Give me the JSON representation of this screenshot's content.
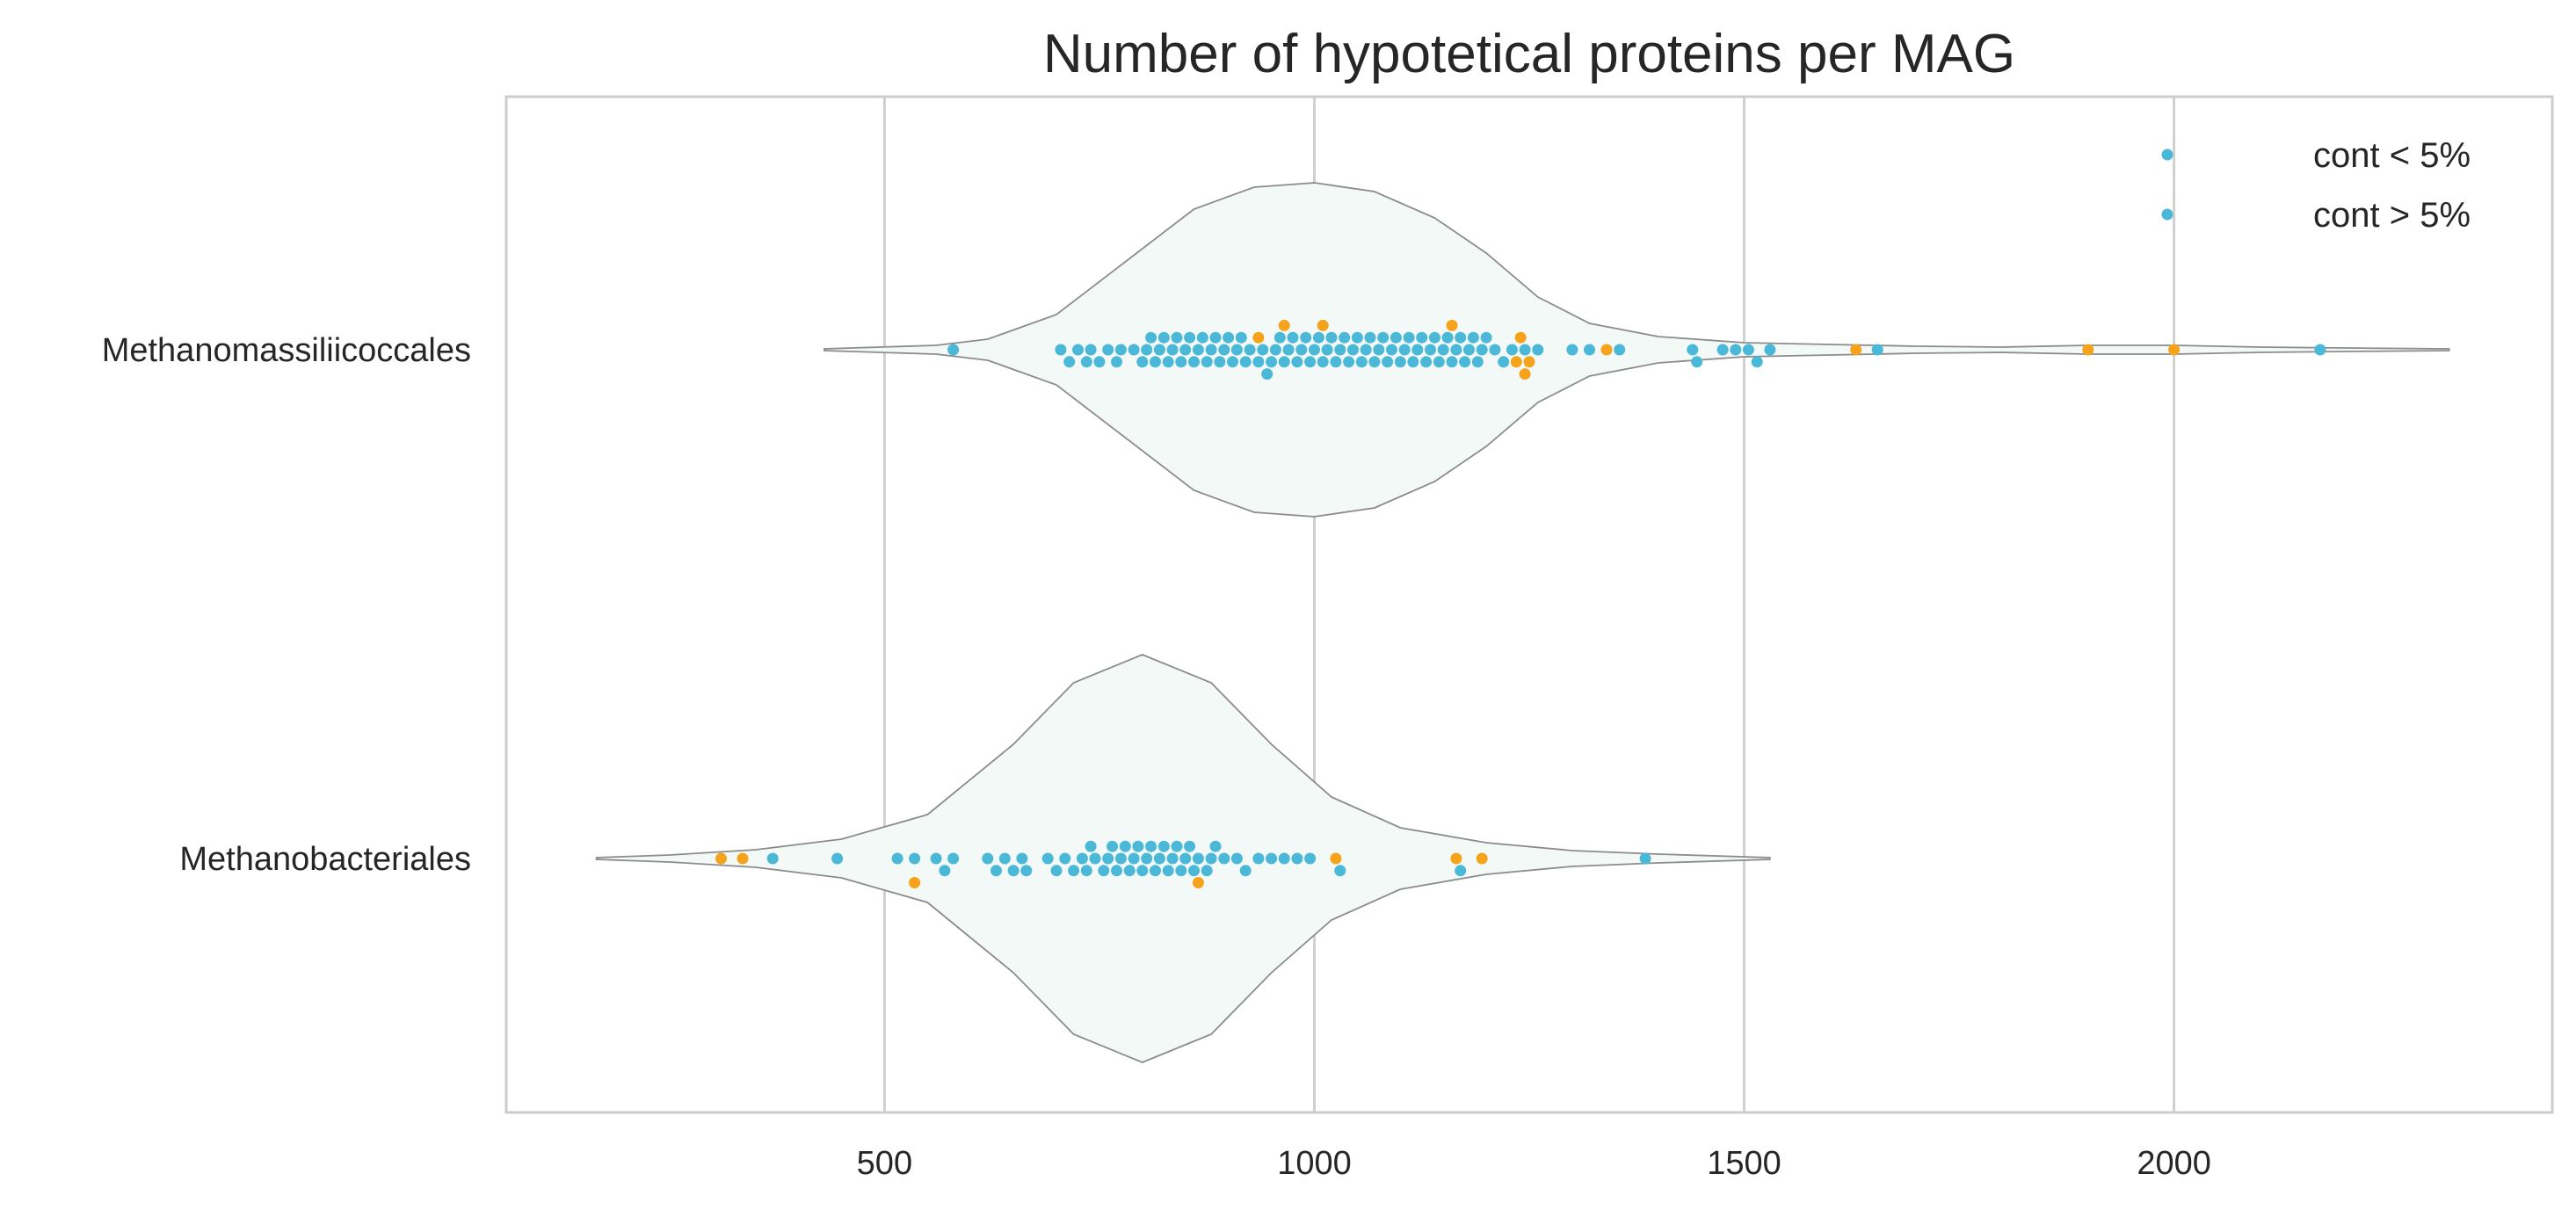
{
  "chart_data": {
    "type": "swarm-violin",
    "title": "Number of hypotetical proteins per MAG",
    "xlabel": "",
    "ylabel": "",
    "xlim": [
      60,
      2440
    ],
    "x_ticks": [
      500,
      1000,
      1500,
      2000
    ],
    "categories": [
      "Methanomassiliicoccales",
      "Methanobacteriales"
    ],
    "grid": "vertical",
    "legend_position": "top-right",
    "legend": [
      {
        "label": "cont < 5%",
        "color": "#4bb8d8"
      },
      {
        "label": "cont > 5%",
        "color": "#4bb8d8"
      }
    ],
    "colors": {
      "low_contamination": "#4bb8d8",
      "high_contamination": "#f5a31a",
      "violin_fill": "#f3f9f7",
      "violin_edge": "#8c8c8c",
      "grid": "#d0d0d0"
    },
    "violins": [
      {
        "category": "Methanomassiliicoccales",
        "min": 430,
        "max": 2320,
        "mode": 1000
      },
      {
        "category": "Methanobacteriales",
        "min": 165,
        "max": 1530,
        "mode": 800
      }
    ],
    "series": [
      {
        "category": "Methanomassiliicoccales",
        "low_contamination": [
          580,
          705,
          715,
          725,
          735,
          740,
          750,
          760,
          770,
          775,
          790,
          800,
          805,
          810,
          815,
          820,
          825,
          830,
          835,
          840,
          845,
          850,
          855,
          860,
          865,
          870,
          875,
          880,
          885,
          890,
          895,
          900,
          905,
          910,
          915,
          920,
          925,
          935,
          940,
          945,
          950,
          955,
          960,
          965,
          970,
          975,
          980,
          985,
          990,
          995,
          1000,
          1005,
          1010,
          1015,
          1020,
          1025,
          1030,
          1035,
          1040,
          1045,
          1050,
          1055,
          1060,
          1065,
          1070,
          1075,
          1080,
          1085,
          1090,
          1095,
          1100,
          1105,
          1110,
          1115,
          1120,
          1125,
          1130,
          1135,
          1140,
          1145,
          1150,
          1155,
          1160,
          1165,
          1170,
          1175,
          1180,
          1185,
          1190,
          1195,
          1200,
          1210,
          1220,
          1230,
          1245,
          1260,
          1300,
          1320,
          1355,
          1440,
          1445,
          1475,
          1490,
          1505,
          1515,
          1530,
          1655,
          2170
        ],
        "high_contamination": [
          935,
          965,
          1010,
          1160,
          1235,
          1240,
          1245,
          1250,
          1340,
          1630,
          1900,
          2000
        ]
      },
      {
        "category": "Methanobacteriales",
        "low_contamination": [
          370,
          445,
          515,
          535,
          560,
          570,
          580,
          620,
          630,
          640,
          650,
          660,
          665,
          690,
          700,
          710,
          720,
          730,
          735,
          740,
          745,
          755,
          760,
          765,
          770,
          775,
          780,
          785,
          790,
          795,
          800,
          805,
          810,
          815,
          820,
          825,
          830,
          835,
          840,
          845,
          850,
          855,
          860,
          865,
          875,
          880,
          885,
          895,
          910,
          920,
          935,
          950,
          965,
          980,
          995,
          1030,
          1170,
          1385
        ],
        "high_contamination": [
          310,
          335,
          535,
          865,
          1025,
          1165,
          1195
        ]
      }
    ]
  }
}
